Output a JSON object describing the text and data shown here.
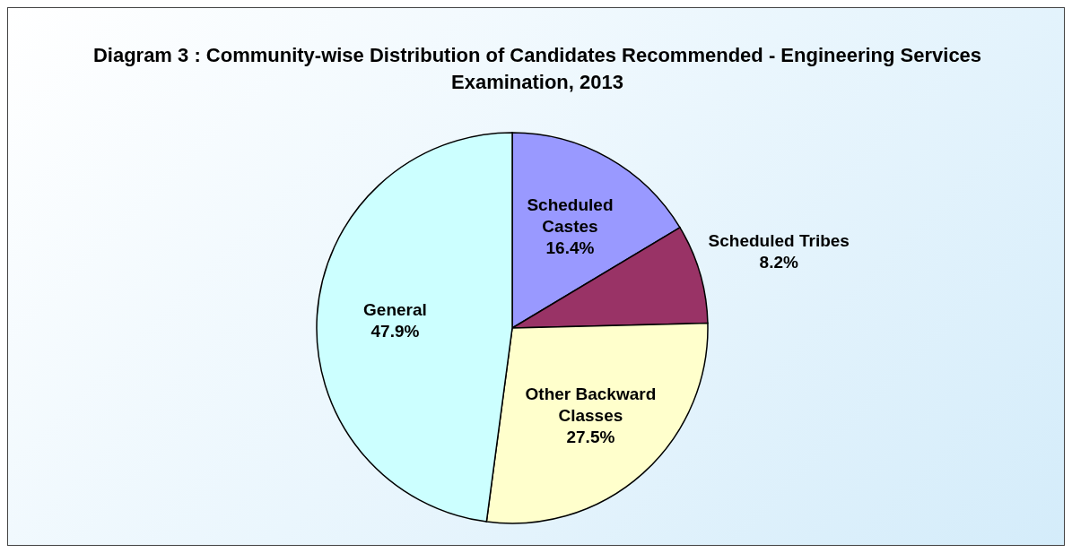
{
  "chart_data": {
    "type": "pie",
    "title": "Diagram 3 : Community-wise Distribution of Candidates Recommended  - Engineering Services Examination, 2013",
    "categories": [
      "Scheduled Castes",
      "Scheduled Tribes",
      "Other Backward Classes",
      "General"
    ],
    "values": [
      16.4,
      8.2,
      27.5,
      47.9
    ],
    "value_labels": [
      "16.4%",
      "8.2%",
      "27.5%",
      "47.9%"
    ],
    "colors": [
      "#9999ff",
      "#993366",
      "#ffffcc",
      "#ccffff"
    ],
    "legend": false
  }
}
